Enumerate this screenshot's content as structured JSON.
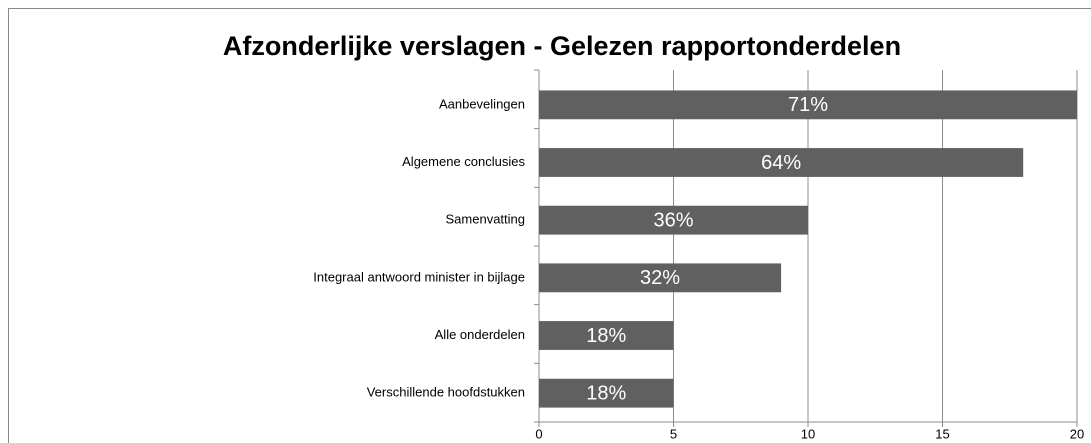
{
  "chart_data": {
    "type": "bar",
    "orientation": "horizontal",
    "title": "Afzonderlijke verslagen - Gelezen rapportonderdelen",
    "categories": [
      "Aanbevelingen",
      "Algemene conclusies",
      "Samenvatting",
      "Integraal antwoord minister in bijlage",
      "Alle onderdelen",
      "Verschillende hoofdstukken"
    ],
    "values": [
      20,
      18,
      10,
      9,
      5,
      5
    ],
    "value_labels": [
      "71%",
      "64%",
      "36%",
      "32%",
      "18%",
      "18%"
    ],
    "color": "#606060",
    "xlim": [
      0,
      20
    ],
    "xticks": [
      0,
      5,
      10,
      15,
      20
    ],
    "grid": true
  }
}
